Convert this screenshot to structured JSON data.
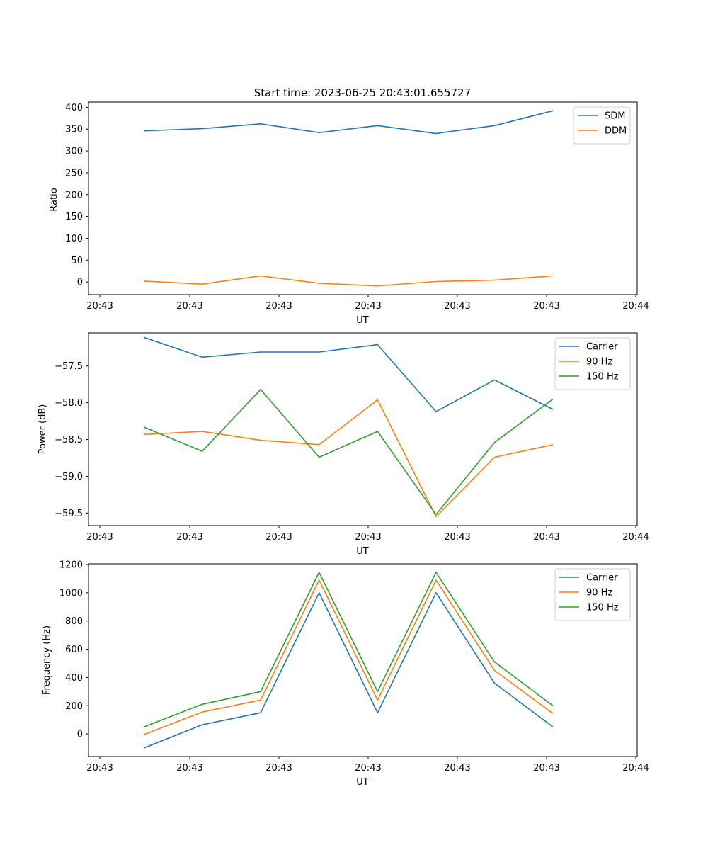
{
  "figure": {
    "background": "#ffffff"
  },
  "chart_data": [
    {
      "type": "line",
      "title": "Start time: 2023-06-25 20:43:01.655727",
      "xlabel": "UT",
      "ylabel": "Ratio",
      "x_tick_labels": [
        "20:43",
        "20:43",
        "20:43",
        "20:43",
        "20:43",
        "20:43",
        "20:44"
      ],
      "y_ticks": [
        0,
        50,
        100,
        150,
        200,
        250,
        300,
        350,
        400
      ],
      "ylim": [
        -29,
        412
      ],
      "grid": false,
      "legend_position": "top-right",
      "series": [
        {
          "name": "SDM",
          "color": "#1f77b4",
          "values": [
            346,
            351,
            362,
            342,
            358,
            340,
            358,
            392
          ]
        },
        {
          "name": "DDM",
          "color": "#ff7f0e",
          "values": [
            2,
            -5,
            14,
            -3,
            -9,
            1,
            4,
            14
          ]
        }
      ]
    },
    {
      "type": "line",
      "title": "",
      "xlabel": "UT",
      "ylabel": "Power (dB)",
      "x_tick_labels": [
        "20:43",
        "20:43",
        "20:43",
        "20:43",
        "20:43",
        "20:43",
        "20:44"
      ],
      "y_ticks": [
        -59.5,
        -59.0,
        -58.5,
        -58.0,
        -57.5
      ],
      "y_tick_labels": [
        "−59.5",
        "−59.0",
        "−58.5",
        "−58.0",
        "−57.5"
      ],
      "ylim": [
        -59.67,
        -57.05
      ],
      "grid": false,
      "legend_position": "top-right",
      "series": [
        {
          "name": "Carrier",
          "color": "#1f77b4",
          "values": [
            -57.11,
            -57.38,
            -57.31,
            -57.31,
            -57.21,
            -58.12,
            -57.69,
            -58.09
          ]
        },
        {
          "name": "90 Hz",
          "color": "#ff7f0e",
          "values": [
            -58.43,
            -58.39,
            -58.51,
            -58.57,
            -57.96,
            -59.55,
            -58.74,
            -58.57
          ]
        },
        {
          "name": "150 Hz",
          "color": "#2ca02c",
          "values": [
            -58.33,
            -58.66,
            -57.82,
            -58.74,
            -58.39,
            -59.52,
            -58.54,
            -57.95
          ]
        }
      ]
    },
    {
      "type": "line",
      "title": "",
      "xlabel": "UT",
      "ylabel": "Frequency (Hz)",
      "x_tick_labels": [
        "20:43",
        "20:43",
        "20:43",
        "20:43",
        "20:43",
        "20:43",
        "20:44"
      ],
      "y_ticks": [
        0,
        200,
        400,
        600,
        800,
        1000,
        1200
      ],
      "ylim": [
        -160,
        1205
      ],
      "grid": false,
      "legend_position": "top-right",
      "series": [
        {
          "name": "Carrier",
          "color": "#1f77b4",
          "values": [
            -100,
            65,
            150,
            1000,
            150,
            1000,
            360,
            50
          ]
        },
        {
          "name": "90 Hz",
          "color": "#ff7f0e",
          "values": [
            -5,
            155,
            240,
            1090,
            240,
            1090,
            450,
            145
          ]
        },
        {
          "name": "150 Hz",
          "color": "#2ca02c",
          "values": [
            50,
            210,
            300,
            1145,
            300,
            1145,
            510,
            200
          ]
        }
      ]
    }
  ]
}
